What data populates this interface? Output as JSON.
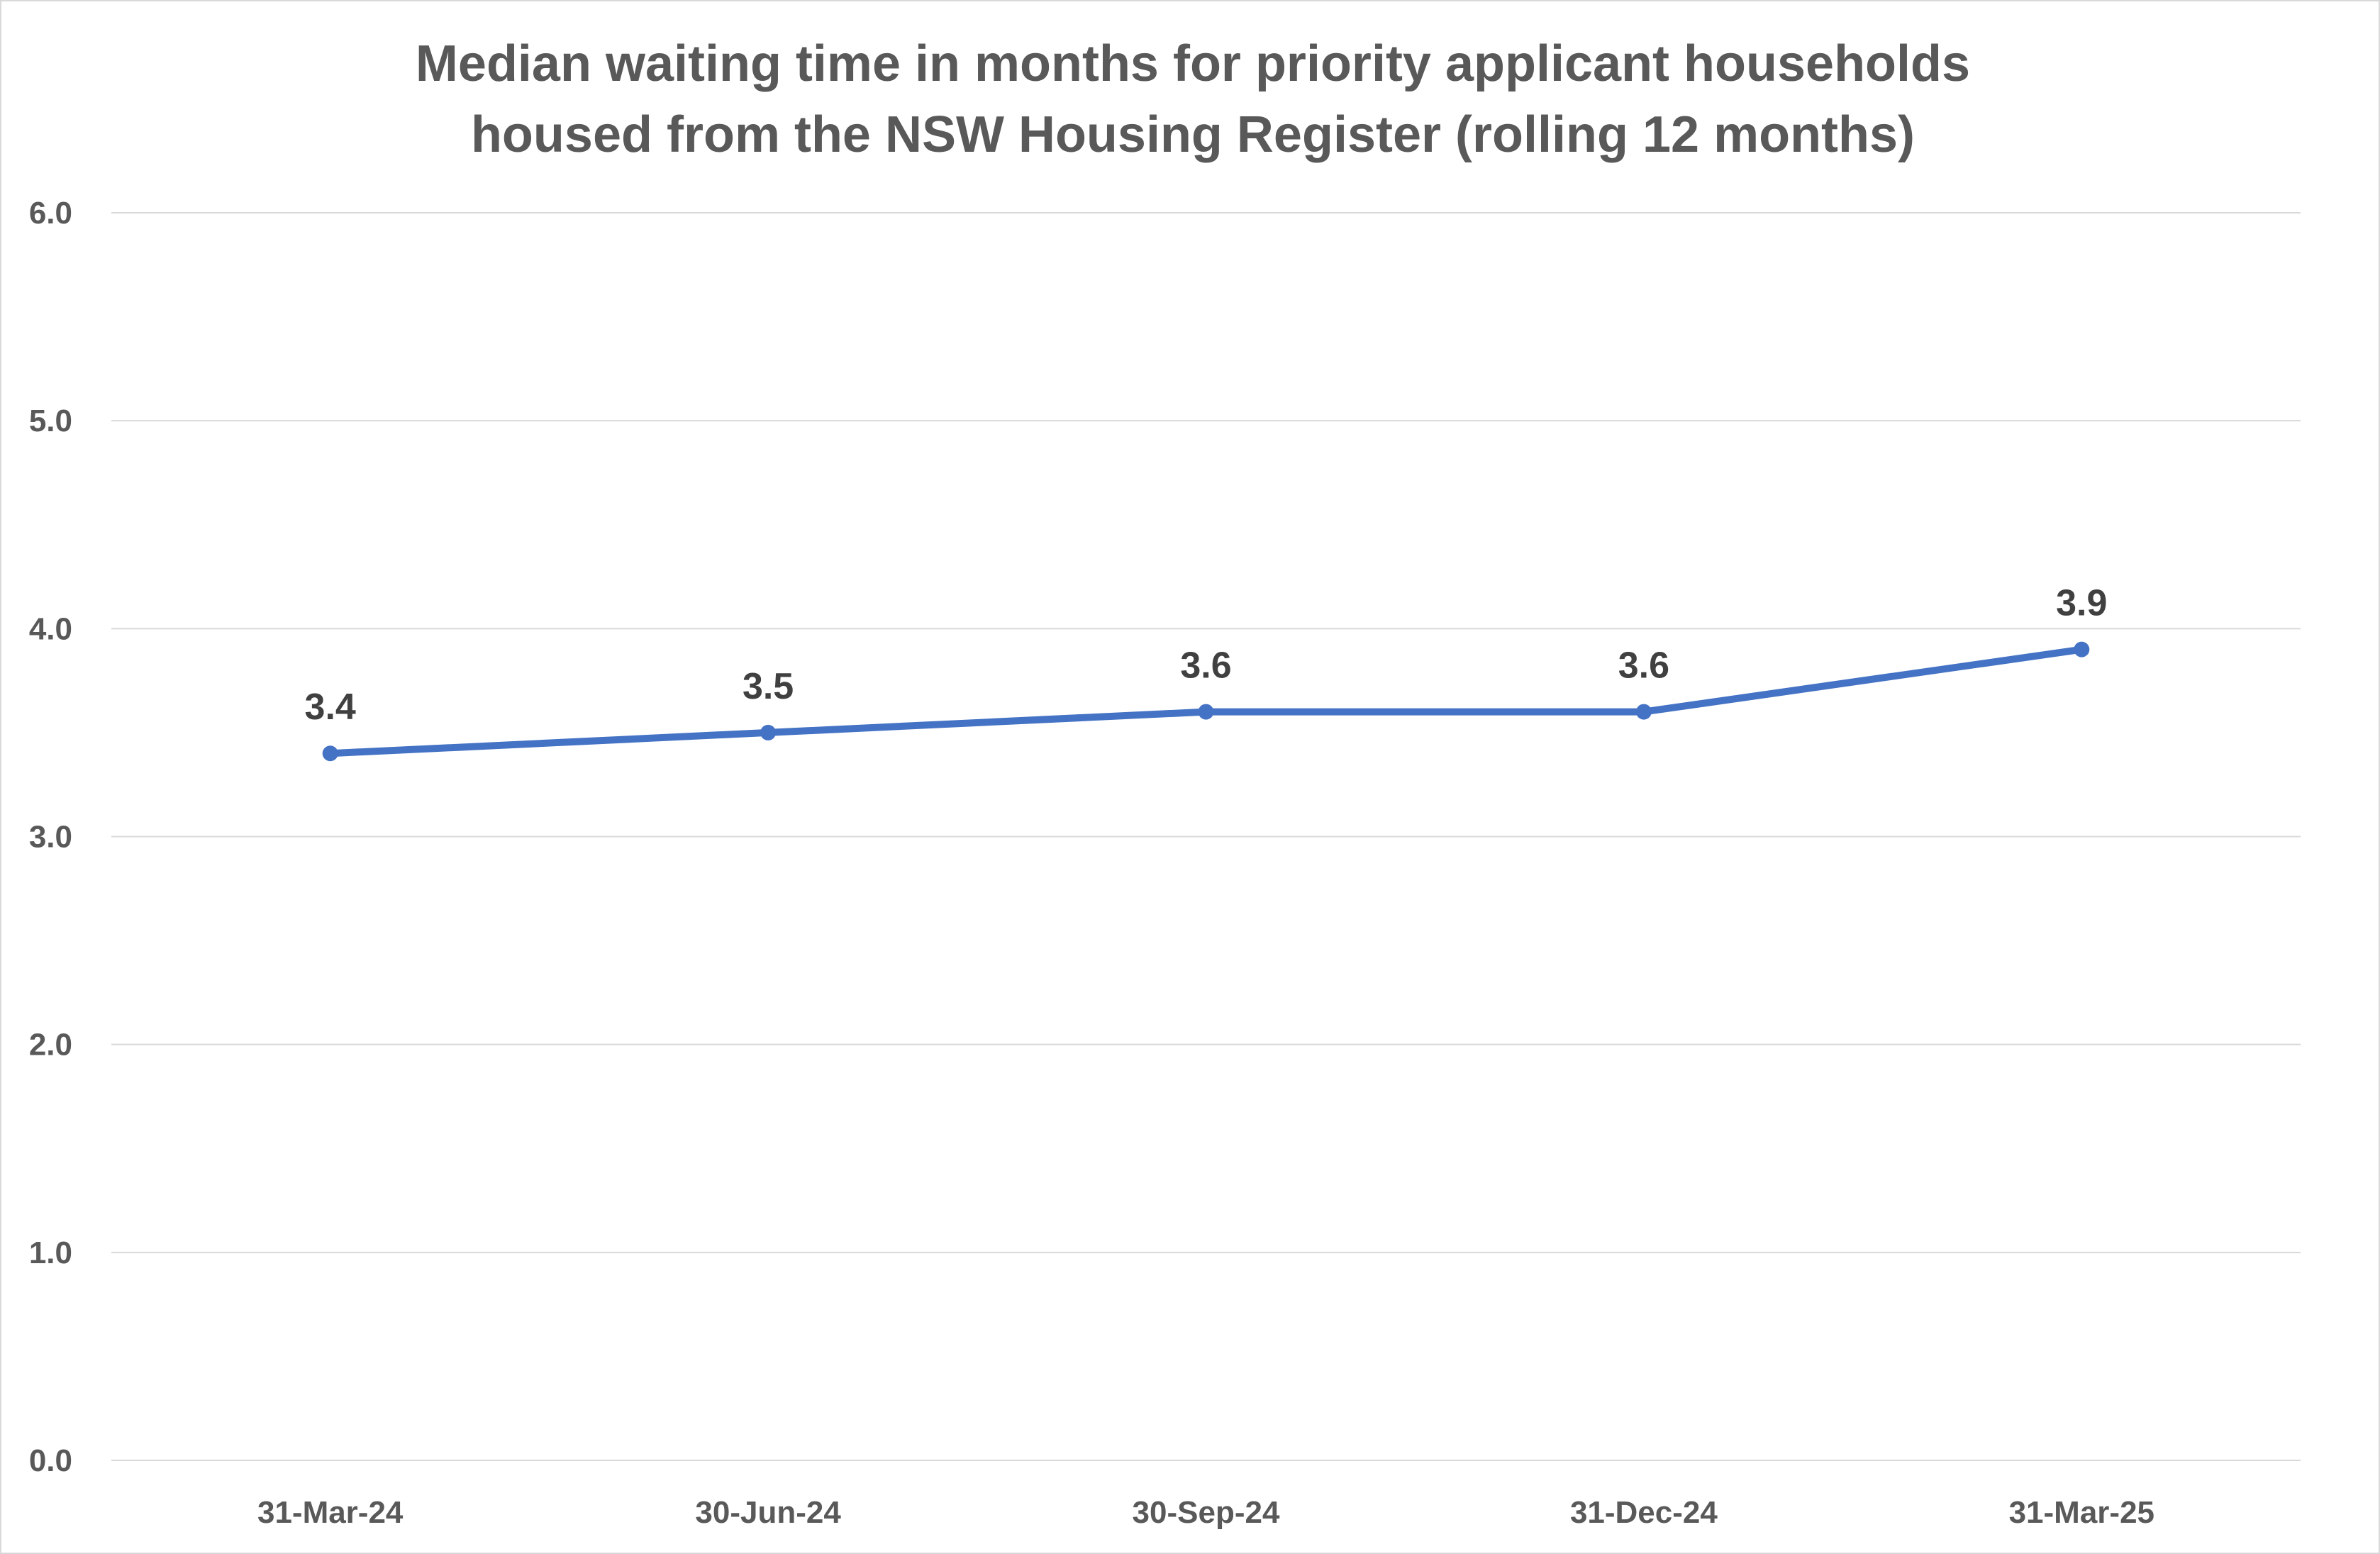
{
  "chart_data": {
    "type": "line",
    "title_lines": [
      "Median waiting time in months for priority applicant households",
      "housed from the NSW Housing Register (rolling 12 months)"
    ],
    "categories": [
      "31-Mar-24",
      "30-Jun-24",
      "30-Sep-24",
      "31-Dec-24",
      "31-Mar-25"
    ],
    "series": [
      {
        "values": [
          3.4,
          3.5,
          3.6,
          3.6,
          3.9
        ],
        "data_labels": [
          "3.4",
          "3.5",
          "3.6",
          "3.6",
          "3.9"
        ],
        "color": "#4472c4"
      }
    ],
    "y_ticks": [
      {
        "value": 0,
        "label": "0.0"
      },
      {
        "value": 1,
        "label": "1.0"
      },
      {
        "value": 2,
        "label": "2.0"
      },
      {
        "value": 3,
        "label": "3.0"
      },
      {
        "value": 4,
        "label": "4.0"
      },
      {
        "value": 5,
        "label": "5.0"
      },
      {
        "value": 6,
        "label": "6.0"
      }
    ],
    "ylim": [
      0,
      6
    ],
    "xlabel": "",
    "ylabel": "",
    "grid": true,
    "legend": "none",
    "colors": {
      "line": "#4472c4",
      "grid": "#d9d9d9",
      "title": "#595959",
      "ticks": "#595959",
      "data_labels": "#404040",
      "border": "#d9d9d9"
    }
  }
}
